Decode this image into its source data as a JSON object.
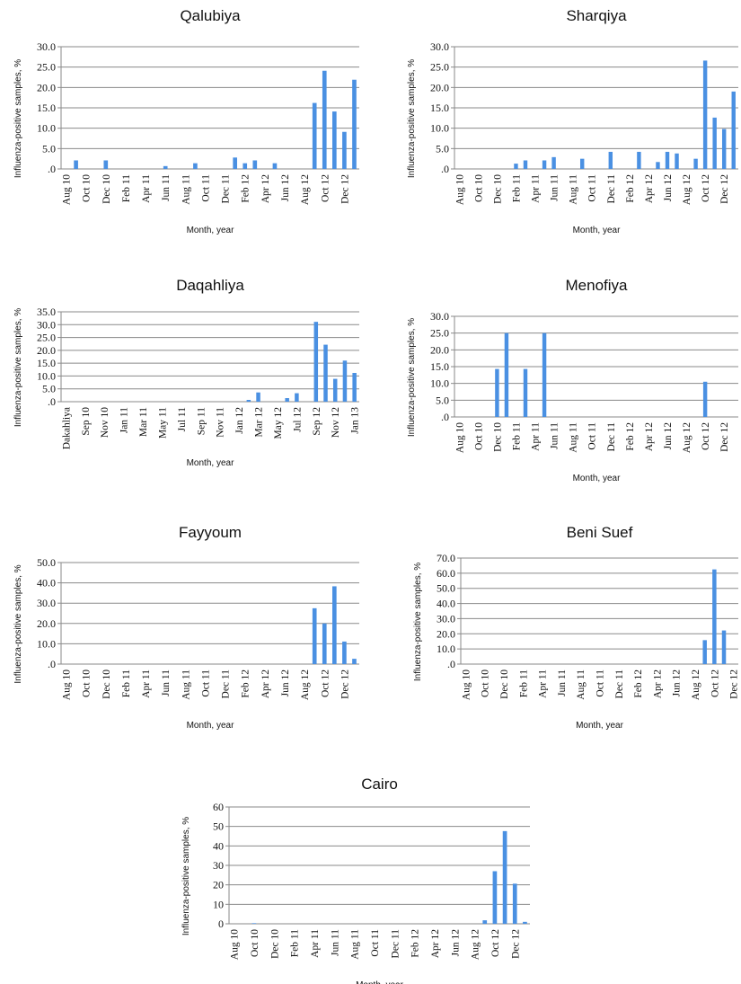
{
  "chart_data": [
    {
      "type": "bar",
      "title": "Qalubiya",
      "xlabel": "Month, year",
      "ylabel": "Influenza-positive samples, %",
      "ylim": [
        0,
        30
      ],
      "yticks": [
        "30.0",
        "25.0",
        "20.0",
        "15.0",
        "10.0",
        "5.0",
        ".0"
      ],
      "xticks": [
        "Aug 10",
        "Oct 10",
        "Dec 10",
        "Feb 11",
        "Apr 11",
        "Jun 11",
        "Aug 11",
        "Oct 11",
        "Dec 11",
        "Feb 12",
        "Apr 12",
        "Jun 12",
        "Aug 12",
        "Oct 12",
        "Dec 12"
      ],
      "categories": [
        "Aug 10",
        "Sep 10",
        "Oct 10",
        "Nov 10",
        "Dec 10",
        "Jan 11",
        "Feb 11",
        "Mar 11",
        "Apr 11",
        "May 11",
        "Jun 11",
        "Jul 11",
        "Aug 11",
        "Sep 11",
        "Oct 11",
        "Nov 11",
        "Dec 11",
        "Jan 12",
        "Feb 12",
        "Mar 12",
        "Apr 12",
        "May 12",
        "Jun 12",
        "Jul 12",
        "Aug 12",
        "Sep 12",
        "Oct 12",
        "Nov 12",
        "Dec 12",
        "Jan 13"
      ],
      "values": [
        0,
        2.1,
        0,
        0,
        2.1,
        0,
        0,
        0,
        0,
        0,
        0.7,
        0,
        0,
        1.4,
        0,
        0,
        0,
        2.8,
        1.4,
        2.1,
        0,
        1.4,
        0,
        0,
        0,
        16.2,
        24.1,
        14.1,
        9.1,
        21.9
      ]
    },
    {
      "type": "bar",
      "title": "Sharqiya",
      "xlabel": "Month, year",
      "ylabel": "Influenza-positive samples, %",
      "ylim": [
        0,
        30
      ],
      "yticks": [
        "30.0",
        "25.0",
        "20.0",
        "15.0",
        "10.0",
        "5.0",
        ".0"
      ],
      "xticks": [
        "Aug 10",
        "Oct 10",
        "Dec 10",
        "Feb 11",
        "Apr 11",
        "Jun 11",
        "Aug 11",
        "Oct 11",
        "Dec 11",
        "Feb 12",
        "Apr 12",
        "Jun 12",
        "Aug 12",
        "Oct 12",
        "Dec 12"
      ],
      "categories": [
        "Aug 10",
        "Sep 10",
        "Oct 10",
        "Nov 10",
        "Dec 10",
        "Jan 11",
        "Feb 11",
        "Mar 11",
        "Apr 11",
        "May 11",
        "Jun 11",
        "Jul 11",
        "Aug 11",
        "Sep 11",
        "Oct 11",
        "Nov 11",
        "Dec 11",
        "Jan 12",
        "Feb 12",
        "Mar 12",
        "Apr 12",
        "May 12",
        "Jun 12",
        "Jul 12",
        "Aug 12",
        "Sep 12",
        "Oct 12",
        "Nov 12",
        "Dec 12",
        "Jan 13"
      ],
      "values": [
        0,
        0,
        0,
        0,
        0,
        0,
        1.3,
        2.1,
        0,
        2.1,
        2.9,
        0,
        0,
        2.5,
        0,
        0,
        4.2,
        0,
        0,
        4.2,
        0,
        1.7,
        4.2,
        3.8,
        0,
        2.5,
        26.6,
        12.6,
        9.8,
        19.0
      ]
    },
    {
      "type": "bar",
      "title": "Daqahliya",
      "xlabel": "Month, year",
      "ylabel": "Influenza-positive samples, %",
      "ylim": [
        0,
        35
      ],
      "yticks": [
        "35.0",
        "30.0",
        "25.0",
        "20.0",
        "15.0",
        "10.0",
        "5.0",
        ".0"
      ],
      "xticks": [
        "Dakahliya",
        "Sep 10",
        "Nov 10",
        "Jan 11",
        "Mar 11",
        "May 11",
        "Jul 11",
        "Sep 11",
        "Nov 11",
        "Jan 12",
        "Mar 12",
        "May 12",
        "Jul 12",
        "Sep 12",
        "Nov 12",
        "Jan 13"
      ],
      "categories": [
        "Dakahliya",
        "Aug 10",
        "Sep 10",
        "Oct 10",
        "Nov 10",
        "Dec 10",
        "Jan 11",
        "Feb 11",
        "Mar 11",
        "Apr 11",
        "May 11",
        "Jun 11",
        "Jul 11",
        "Aug 11",
        "Sep 11",
        "Oct 11",
        "Nov 11",
        "Dec 11",
        "Jan 12",
        "Feb 12",
        "Mar 12",
        "Apr 12",
        "May 12",
        "Jun 12",
        "Jul 12",
        "Aug 12",
        "Sep 12",
        "Oct 12",
        "Nov 12",
        "Dec 12",
        "Jan 13"
      ],
      "values": [
        0,
        0,
        0,
        0,
        0,
        0,
        0,
        0,
        0,
        0,
        0,
        0,
        0,
        0,
        0,
        0,
        0,
        0,
        0,
        0.7,
        3.6,
        0,
        0,
        1.4,
        3.3,
        0,
        31.1,
        22.2,
        8.9,
        16.0,
        11.2
      ]
    },
    {
      "type": "bar",
      "title": "Menofiya",
      "xlabel": "Month, year",
      "ylabel": "Influenza-positive samples, %",
      "ylim": [
        0,
        30
      ],
      "yticks": [
        "30.0",
        "25.0",
        "20.0",
        "15.0",
        "10.0",
        "5.0",
        ".0"
      ],
      "xticks": [
        "Aug 10",
        "Oct 10",
        "Dec 10",
        "Feb 11",
        "Apr 11",
        "Jun 11",
        "Aug 11",
        "Oct 11",
        "Dec 11",
        "Feb 12",
        "Apr 12",
        "Jun 12",
        "Aug 12",
        "Oct 12",
        "Dec 12"
      ],
      "categories": [
        "Aug 10",
        "Sep 10",
        "Oct 10",
        "Nov 10",
        "Dec 10",
        "Jan 11",
        "Feb 11",
        "Mar 11",
        "Apr 11",
        "May 11",
        "Jun 11",
        "Jul 11",
        "Aug 11",
        "Sep 11",
        "Oct 11",
        "Nov 11",
        "Dec 11",
        "Jan 12",
        "Feb 12",
        "Mar 12",
        "Apr 12",
        "May 12",
        "Jun 12",
        "Jul 12",
        "Aug 12",
        "Sep 12",
        "Oct 12",
        "Nov 12",
        "Dec 12",
        "Jan 13"
      ],
      "values": [
        0,
        0,
        0,
        0,
        14.3,
        25.0,
        0,
        14.3,
        0,
        25.0,
        0,
        0,
        0,
        0,
        0,
        0,
        0,
        0,
        0,
        0,
        0,
        0,
        0,
        0,
        0,
        0,
        10.5,
        0,
        0,
        0
      ]
    },
    {
      "type": "bar",
      "title": "Fayyoum",
      "xlabel": "Month, year",
      "ylabel": "Influenza-positive samples, %",
      "ylim": [
        0,
        50
      ],
      "yticks": [
        "50.0",
        "40.0",
        "30.0",
        "20.0",
        "10.0",
        ".0"
      ],
      "xticks": [
        "Aug 10",
        "Oct 10",
        "Dec 10",
        "Feb 11",
        "Apr 11",
        "Jun 11",
        "Aug 11",
        "Oct 11",
        "Dec 11",
        "Feb 12",
        "Apr 12",
        "Jun 12",
        "Aug 12",
        "Oct 12",
        "Dec 12"
      ],
      "categories": [
        "Aug 10",
        "Sep 10",
        "Oct 10",
        "Nov 10",
        "Dec 10",
        "Jan 11",
        "Feb 11",
        "Mar 11",
        "Apr 11",
        "May 11",
        "Jun 11",
        "Jul 11",
        "Aug 11",
        "Sep 11",
        "Oct 11",
        "Nov 11",
        "Dec 11",
        "Jan 12",
        "Feb 12",
        "Mar 12",
        "Apr 12",
        "May 12",
        "Jun 12",
        "Jul 12",
        "Aug 12",
        "Sep 12",
        "Oct 12",
        "Nov 12",
        "Dec 12",
        "Jan 13"
      ],
      "values": [
        0,
        0,
        0,
        0,
        0,
        0,
        0,
        0,
        0,
        0,
        0,
        0,
        0,
        0,
        0,
        0,
        0,
        0,
        0,
        0,
        0,
        0,
        0,
        0,
        0,
        27.5,
        20.0,
        38.3,
        11.1,
        2.6
      ]
    },
    {
      "type": "bar",
      "title": "Beni Suef",
      "xlabel": "Month, year",
      "ylabel": "Influenza-positive samples, %",
      "ylim": [
        0,
        70
      ],
      "yticks": [
        "70.0",
        "60.0",
        "50.0",
        "40.0",
        "30.0",
        "20.0",
        "10.0",
        ".0"
      ],
      "xticks": [
        "Aug 10",
        "Oct 10",
        "Dec 10",
        "Feb 11",
        "Apr 11",
        "Jun 11",
        "Aug 11",
        "Oct 11",
        "Dec 11",
        "Feb 12",
        "Apr 12",
        "Jun 12",
        "Aug 12",
        "Oct 12",
        "Dec 12"
      ],
      "categories": [
        "Aug 10",
        "Sep 10",
        "Oct 10",
        "Nov 10",
        "Dec 10",
        "Jan 11",
        "Feb 11",
        "Mar 11",
        "Apr 11",
        "May 11",
        "Jun 11",
        "Jul 11",
        "Aug 11",
        "Sep 11",
        "Oct 11",
        "Nov 11",
        "Dec 11",
        "Jan 12",
        "Feb 12",
        "Mar 12",
        "Apr 12",
        "May 12",
        "Jun 12",
        "Jul 12",
        "Aug 12",
        "Sep 12",
        "Oct 12",
        "Nov 12",
        "Dec 12"
      ],
      "values": [
        0,
        0,
        0,
        0,
        0,
        0,
        0,
        0,
        0,
        0,
        0,
        0,
        0,
        0,
        0,
        0,
        0,
        0,
        0,
        0,
        0,
        0,
        0,
        0,
        0,
        15.8,
        62.5,
        22.2,
        0
      ]
    },
    {
      "type": "bar",
      "title": "Cairo",
      "xlabel": "Month, year",
      "ylabel": "Influenza-positive samples, %",
      "ylim": [
        0,
        60
      ],
      "yticks": [
        "60",
        "50",
        "40",
        "30",
        "20",
        "10",
        "0"
      ],
      "xticks": [
        "Aug 10",
        "Oct 10",
        "Dec 10",
        "Feb 11",
        "Apr 11",
        "Jun 11",
        "Aug 11",
        "Oct 11",
        "Dec 11",
        "Feb 12",
        "Apr 12",
        "Jun 12",
        "Aug 12",
        "Oct 12",
        "Dec 12"
      ],
      "categories": [
        "Aug 10",
        "Sep 10",
        "Oct 10",
        "Nov 10",
        "Dec 10",
        "Jan 11",
        "Feb 11",
        "Mar 11",
        "Apr 11",
        "May 11",
        "Jun 11",
        "Jul 11",
        "Aug 11",
        "Sep 11",
        "Oct 11",
        "Nov 11",
        "Dec 11",
        "Jan 12",
        "Feb 12",
        "Mar 12",
        "Apr 12",
        "May 12",
        "Jun 12",
        "Jul 12",
        "Aug 12",
        "Sep 12",
        "Oct 12",
        "Nov 12",
        "Dec 12",
        "Jan 13"
      ],
      "values": [
        0,
        0,
        0.3,
        0,
        0,
        0,
        0,
        0,
        0,
        0,
        0,
        0,
        0,
        0,
        0,
        0,
        0,
        0,
        0,
        0,
        0,
        0,
        0,
        0,
        0,
        1.8,
        27.0,
        47.6,
        20.6,
        1.0
      ]
    }
  ],
  "colors": {
    "bar": "#4a90e2",
    "grid": "#8a8a8a",
    "text": "#111111"
  }
}
